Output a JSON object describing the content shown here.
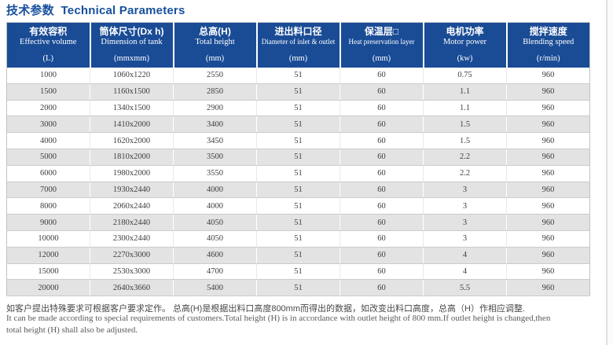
{
  "title": "技术参数  Technical Parameters",
  "table": {
    "columns": [
      {
        "zh": "有效容积",
        "en": "Effective volume",
        "unit": "(L)"
      },
      {
        "zh": "筒体尺寸(Dx h)",
        "en": "Dimension of tank",
        "unit": "(mmxmm)"
      },
      {
        "zh": "总高(H)",
        "en": "Total height",
        "unit": "(mm)"
      },
      {
        "zh": "进出料口径",
        "en": "Diameter of inlet & outlet",
        "unit": "(mm)"
      },
      {
        "zh": "保温层□",
        "en": "Heat preservation layer",
        "unit": "(mm)"
      },
      {
        "zh": "电机功率",
        "en": "Motor power",
        "unit": "(kw)"
      },
      {
        "zh": "搅拌速度",
        "en": "Blending speed",
        "unit": "(r/min)"
      }
    ],
    "rows": [
      [
        "1000",
        "1060x1220",
        "2550",
        "51",
        "60",
        "0.75",
        "960"
      ],
      [
        "1500",
        "1160x1500",
        "2850",
        "51",
        "60",
        "1.1",
        "960"
      ],
      [
        "2000",
        "1340x1500",
        "2900",
        "51",
        "60",
        "1.1",
        "960"
      ],
      [
        "3000",
        "1410x2000",
        "3400",
        "51",
        "60",
        "1.5",
        "960"
      ],
      [
        "4000",
        "1620x2000",
        "3450",
        "51",
        "60",
        "1.5",
        "960"
      ],
      [
        "5000",
        "1810x2000",
        "3500",
        "51",
        "60",
        "2.2",
        "960"
      ],
      [
        "6000",
        "1980x2000",
        "3550",
        "51",
        "60",
        "2.2",
        "960"
      ],
      [
        "7000",
        "1930x2440",
        "4000",
        "51",
        "60",
        "3",
        "960"
      ],
      [
        "8000",
        "2060x2440",
        "4000",
        "51",
        "60",
        "3",
        "960"
      ],
      [
        "9000",
        "2180x2440",
        "4050",
        "51",
        "60",
        "3",
        "960"
      ],
      [
        "10000",
        "2300x2440",
        "4050",
        "51",
        "60",
        "3",
        "960"
      ],
      [
        "12000",
        "2270x3000",
        "4600",
        "51",
        "60",
        "4",
        "960"
      ],
      [
        "15000",
        "2530x3000",
        "4700",
        "51",
        "60",
        "4",
        "960"
      ],
      [
        "20000",
        "2640x3660",
        "5400",
        "51",
        "60",
        "5.5",
        "960"
      ]
    ]
  },
  "footnote": {
    "zh": "如客户提出特殊要求可根据客户要求定作。 总高(H)是根据出料口高度800mm而得出的数据，如改变出料口高度，总高（H）作相应调整.",
    "en1": "It can be made according to special requirements of customers.Total height (H) is in accordance with outlet height of 800 mm.If outlet height is changed,then",
    "en2": "total height (H) shall also be adjusted."
  },
  "colors": {
    "header_bg": "#1a4c96",
    "title_blue": "#17509e",
    "row_alt": "#e3e3e3",
    "data_text": "#3e3e3e"
  }
}
